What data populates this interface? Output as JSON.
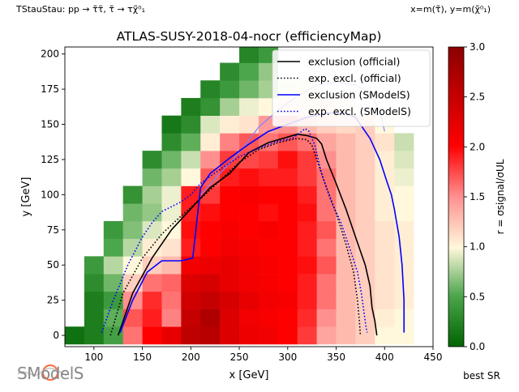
{
  "header": {
    "process": "TStauStau: pp → τ̃τ̃, τ̃ → τχ̃⁰₁",
    "axes_def": "x=m(τ̃), y=m(χ̃⁰₁)"
  },
  "logo_text": "SModelS",
  "footer": {
    "best_sr": "best SR"
  },
  "colors": {
    "exclusion_official": "#000000",
    "exclusion_smodels": "#0000ff",
    "smodels_excl_thin": "#8080ff",
    "cmap_low": "#006400",
    "cmap_mid": "#fff8dc",
    "cmap_high": "#8b0000"
  },
  "chart_data": {
    "type": "heatmap",
    "title": "ATLAS-SUSY-2018-04-nocr (efficiencyMap)",
    "xlabel": "x [GeV]",
    "ylabel": "y [GeV]",
    "xlim": [
      70,
      450
    ],
    "ylim": [
      -8,
      205
    ],
    "xticks": [
      100,
      150,
      200,
      250,
      300,
      350,
      400,
      450
    ],
    "yticks": [
      0,
      25,
      50,
      75,
      100,
      125,
      150,
      175,
      200
    ],
    "colorbar": {
      "label": "r = σsignal/σUL",
      "min": 0.0,
      "max": 3.0,
      "ticks": [
        0.0,
        0.5,
        1.0,
        1.5,
        2.0,
        2.5,
        3.0
      ]
    },
    "grid": {
      "x_start": 80,
      "x_step": 20,
      "nx": 18,
      "y_start": 0,
      "y_step": 12.5,
      "ny": 17,
      "r_rows": [
        [
          0.1,
          0.2,
          0.45,
          1.6,
          2.0,
          2.2,
          2.55,
          2.6,
          2.3,
          2.15,
          2.1,
          2.0,
          1.8,
          1.4,
          1.3,
          1.2,
          1.0,
          1.0
        ],
        [
          null,
          0.2,
          0.55,
          1.7,
          1.9,
          1.55,
          2.5,
          2.7,
          2.3,
          2.1,
          2.05,
          2.0,
          1.85,
          1.5,
          1.3,
          1.2,
          1.05,
          1.0
        ],
        [
          null,
          0.2,
          0.4,
          1.5,
          1.85,
          1.6,
          2.4,
          2.5,
          2.35,
          2.2,
          2.1,
          2.05,
          1.9,
          1.6,
          1.3,
          1.2,
          1.1,
          1.05
        ],
        [
          null,
          0.3,
          0.6,
          1.2,
          1.6,
          1.65,
          2.3,
          2.35,
          2.2,
          2.1,
          2.05,
          2.0,
          1.9,
          1.6,
          1.3,
          1.2,
          1.1,
          1.05
        ],
        [
          null,
          0.4,
          0.8,
          1.0,
          1.2,
          1.3,
          2.1,
          2.15,
          2.2,
          2.1,
          2.05,
          2.0,
          1.95,
          1.7,
          1.3,
          1.2,
          1.1,
          1.05
        ],
        [
          null,
          null,
          0.5,
          0.8,
          1.05,
          1.1,
          1.9,
          2.0,
          2.1,
          2.05,
          2.0,
          2.0,
          1.9,
          1.6,
          1.3,
          1.2,
          1.1,
          1.05
        ],
        [
          null,
          null,
          0.4,
          0.65,
          0.9,
          1.0,
          1.95,
          2.0,
          2.05,
          2.0,
          2.05,
          2.0,
          1.9,
          1.7,
          1.3,
          1.2,
          1.1,
          1.05
        ],
        [
          null,
          null,
          null,
          0.6,
          0.7,
          0.95,
          1.9,
          1.95,
          2.0,
          2.0,
          1.95,
          2.0,
          1.95,
          1.6,
          1.3,
          1.2,
          1.05,
          1.0
        ],
        [
          null,
          null,
          null,
          0.35,
          0.75,
          0.95,
          1.9,
          1.8,
          2.0,
          2.05,
          2.0,
          2.0,
          1.9,
          1.6,
          1.3,
          1.2,
          1.05,
          1.0
        ],
        [
          null,
          null,
          null,
          null,
          0.6,
          0.75,
          1.0,
          1.7,
          1.9,
          1.95,
          1.9,
          1.9,
          1.8,
          1.6,
          1.3,
          1.2,
          1.05,
          0.95
        ],
        [
          null,
          null,
          null,
          null,
          0.3,
          0.6,
          0.85,
          1.5,
          1.8,
          1.75,
          1.8,
          1.95,
          1.8,
          1.5,
          1.3,
          1.2,
          1.05,
          0.9
        ],
        [
          null,
          null,
          null,
          null,
          null,
          0.3,
          0.55,
          1.05,
          1.55,
          1.7,
          1.6,
          1.7,
          1.6,
          1.4,
          1.3,
          1.2,
          1.1,
          0.85
        ],
        [
          null,
          null,
          null,
          null,
          null,
          0.15,
          0.3,
          0.9,
          1.05,
          1.1,
          1.45,
          1.5,
          1.3,
          1.2,
          1.15,
          1.2,
          1.0,
          null
        ],
        [
          null,
          null,
          null,
          null,
          null,
          null,
          0.2,
          0.35,
          0.75,
          0.95,
          1.0,
          1.1,
          1.1,
          1.1,
          1.05,
          null,
          null,
          null
        ],
        [
          null,
          null,
          null,
          null,
          null,
          null,
          null,
          0.25,
          0.4,
          0.6,
          0.75,
          0.95,
          1.05,
          null,
          null,
          null,
          null,
          null
        ],
        [
          null,
          null,
          null,
          null,
          null,
          null,
          null,
          null,
          0.3,
          0.5,
          0.7,
          null,
          null,
          null,
          null,
          null,
          null,
          null
        ],
        [
          null,
          null,
          null,
          null,
          null,
          null,
          null,
          null,
          null,
          0.25,
          0.4,
          null,
          null,
          null,
          null,
          null,
          null,
          null
        ]
      ]
    },
    "series": [
      {
        "name": "exclusion (official)",
        "style": "solid",
        "color": "#000000",
        "x": [
          125,
          140,
          160,
          180,
          200,
          220,
          240,
          260,
          280,
          300,
          310,
          320,
          330,
          335,
          340,
          350,
          360,
          370,
          380,
          385,
          387,
          390,
          392
        ],
        "y": [
          0,
          30,
          55,
          75,
          90,
          105,
          115,
          130,
          137,
          141,
          143,
          142,
          140,
          136,
          125,
          108,
          90,
          70,
          50,
          35,
          20,
          10,
          0
        ]
      },
      {
        "name": "exp. excl. (official)",
        "style": "dotted",
        "color": "#000000",
        "x": [
          117,
          130,
          150,
          170,
          190,
          210,
          230,
          250,
          270,
          290,
          310,
          320,
          325,
          330,
          340,
          350,
          360,
          368,
          372,
          374,
          375
        ],
        "y": [
          0,
          30,
          55,
          72,
          85,
          97,
          110,
          123,
          132,
          137,
          140,
          139,
          135,
          125,
          105,
          87,
          65,
          45,
          25,
          10,
          0
        ]
      },
      {
        "name": "exclusion (SModelS)",
        "style": "solid",
        "color": "#0000ff",
        "x": [
          127,
          140,
          155,
          170,
          190,
          202,
          206,
          210,
          220,
          240,
          260,
          280,
          300,
          320,
          340,
          360,
          370,
          385,
          395,
          402,
          407,
          410,
          415,
          418,
          420,
          420
        ],
        "y": [
          2,
          25,
          45,
          53,
          53,
          55,
          80,
          105,
          115,
          126,
          136,
          145,
          150,
          155,
          158,
          158,
          155,
          140,
          125,
          110,
          100,
          90,
          70,
          50,
          25,
          2
        ]
      },
      {
        "name": "exp. excl. (SModelS)",
        "style": "dotted",
        "color": "#0000ff",
        "x": [
          108,
          120,
          135,
          150,
          160,
          170,
          190,
          200,
          210,
          230,
          250,
          270,
          290,
          305,
          318,
          322,
          328,
          335,
          345,
          355,
          365,
          372,
          376,
          379,
          381,
          382
        ],
        "y": [
          2,
          25,
          50,
          70,
          80,
          88,
          95,
          100,
          108,
          118,
          127,
          133,
          138,
          140,
          147,
          145,
          135,
          115,
          95,
          80,
          60,
          45,
          30,
          15,
          5,
          2
        ]
      }
    ],
    "legend": {
      "placement": "top-right",
      "entries": [
        "exclusion (official)",
        "exp. excl. (official)",
        "exclusion (SModelS)",
        "exp. excl. (SModelS)"
      ]
    },
    "extra_curve": {
      "color": "#8080ff",
      "x": [
        210,
        230,
        250,
        270,
        290,
        310,
        330,
        350,
        370,
        385,
        395,
        400
      ],
      "y": [
        100,
        115,
        130,
        148,
        160,
        170,
        178,
        180,
        178,
        172,
        160,
        145
      ]
    }
  }
}
